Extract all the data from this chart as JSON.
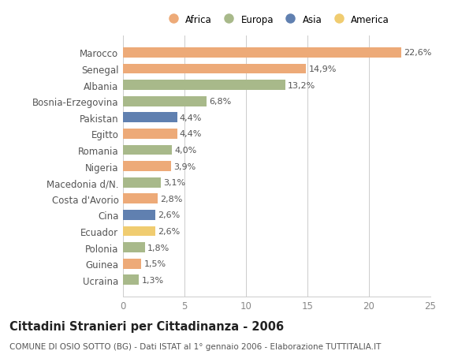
{
  "categories": [
    "Marocco",
    "Senegal",
    "Albania",
    "Bosnia-Erzegovina",
    "Pakistan",
    "Egitto",
    "Romania",
    "Nigeria",
    "Macedonia d/N.",
    "Costa d'Avorio",
    "Cina",
    "Ecuador",
    "Polonia",
    "Guinea",
    "Ucraina"
  ],
  "values": [
    22.6,
    14.9,
    13.2,
    6.8,
    4.4,
    4.4,
    4.0,
    3.9,
    3.1,
    2.8,
    2.6,
    2.6,
    1.8,
    1.5,
    1.3
  ],
  "continents": [
    "Africa",
    "Africa",
    "Europa",
    "Europa",
    "Asia",
    "Africa",
    "Europa",
    "Africa",
    "Europa",
    "Africa",
    "Asia",
    "America",
    "Europa",
    "Africa",
    "Europa"
  ],
  "continent_colors": {
    "Africa": "#EDAA78",
    "Europa": "#A8B98A",
    "Asia": "#6080B0",
    "America": "#F0CC70"
  },
  "legend_order": [
    "Africa",
    "Europa",
    "Asia",
    "America"
  ],
  "title": "Cittadini Stranieri per Cittadinanza - 2006",
  "subtitle": "COMUNE DI OSIO SOTTO (BG) - Dati ISTAT al 1° gennaio 2006 - Elaborazione TUTTITALIA.IT",
  "xlim": [
    0,
    25
  ],
  "xticks": [
    0,
    5,
    10,
    15,
    20,
    25
  ],
  "bg_color": "#FFFFFF",
  "grid_color": "#CCCCCC",
  "bar_height": 0.62,
  "value_label_fontsize": 8,
  "title_fontsize": 10.5,
  "subtitle_fontsize": 7.5,
  "ytick_fontsize": 8.5,
  "xtick_fontsize": 8.5
}
